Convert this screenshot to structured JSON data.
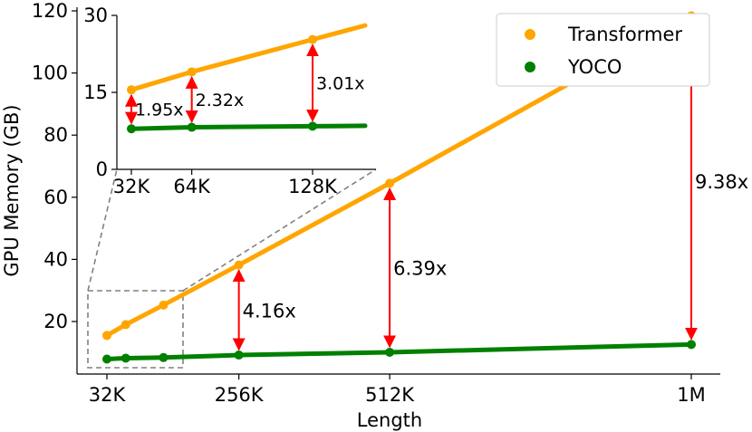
{
  "chart_data": {
    "type": "line",
    "xlabel": "Length",
    "ylabel": "GPU Memory (GB)",
    "x_ticks": [
      {
        "label": "32K",
        "value": 32
      },
      {
        "label": "256K",
        "value": 256
      },
      {
        "label": "512K",
        "value": 512
      },
      {
        "label": "1M",
        "value": 1024
      }
    ],
    "y_ticks": [
      20,
      40,
      60,
      80,
      100,
      120
    ],
    "legend": {
      "location": "upper right"
    },
    "series": [
      {
        "name": "Transformer",
        "color": "#ffa500",
        "x": [
          32,
          64,
          128,
          256,
          512,
          1024
        ],
        "y": [
          15.5,
          19.0,
          25.3,
          38.2,
          64.5,
          118.4
        ]
      },
      {
        "name": "YOCO",
        "color": "#008000",
        "x": [
          32,
          64,
          128,
          256,
          512,
          1024
        ],
        "y": [
          7.9,
          8.2,
          8.4,
          9.2,
          10.1,
          12.6
        ]
      }
    ],
    "annotations": [
      {
        "x": 256,
        "y_top": 38.2,
        "y_bottom": 9.2,
        "label": "4.16x"
      },
      {
        "x": 512,
        "y_top": 64.5,
        "y_bottom": 10.1,
        "label": "6.39x"
      },
      {
        "x": 1024,
        "y_top": 118.4,
        "y_bottom": 12.6,
        "label": "9.38x"
      }
    ],
    "inset": {
      "x_ticks": [
        {
          "label": "32K",
          "value": 32
        },
        {
          "label": "64K",
          "value": 64
        },
        {
          "label": "128K",
          "value": 128
        }
      ],
      "y_ticks": [
        0,
        15,
        30
      ],
      "ylim": [
        0,
        30
      ],
      "annotations": [
        {
          "x": 32,
          "label": "1.95x"
        },
        {
          "x": 64,
          "label": "2.32x"
        },
        {
          "x": 128,
          "label": "3.01x"
        }
      ]
    }
  }
}
